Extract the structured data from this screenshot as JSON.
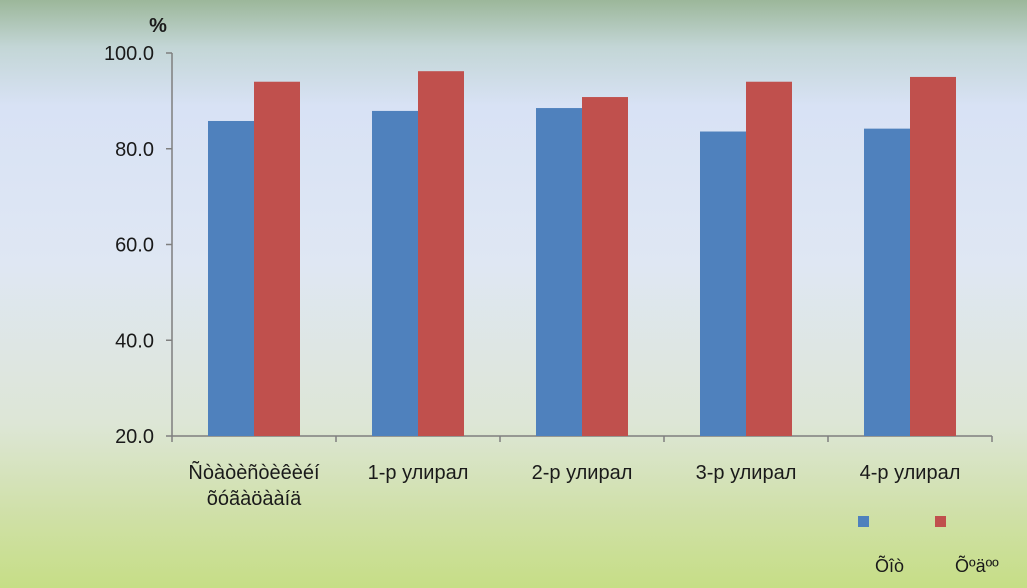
{
  "chart_data": {
    "type": "bar",
    "unit": "%",
    "categories": [
      [
        "Ñòàòèñòèêèéí",
        "õóãàöààíä"
      ],
      [
        "1-р улирал"
      ],
      [
        "2-р улирал"
      ],
      [
        "3-р улирал"
      ],
      [
        "4-р улирал"
      ]
    ],
    "series": [
      {
        "name": "Õîò",
        "color": "#4f81bd",
        "values": [
          85.8,
          87.9,
          88.5,
          83.6,
          84.2
        ]
      },
      {
        "name": "Õºäºº",
        "color": "#c0504d",
        "values": [
          94.0,
          96.2,
          90.8,
          94.0,
          95.0
        ]
      }
    ],
    "ylim": [
      20,
      100
    ],
    "yticks": [
      "20.0",
      "40.0",
      "60.0",
      "80.0",
      "100.0"
    ],
    "ytick_values": [
      20,
      40,
      60,
      80,
      100
    ],
    "legend_position": "bottom-right",
    "grid": false
  }
}
